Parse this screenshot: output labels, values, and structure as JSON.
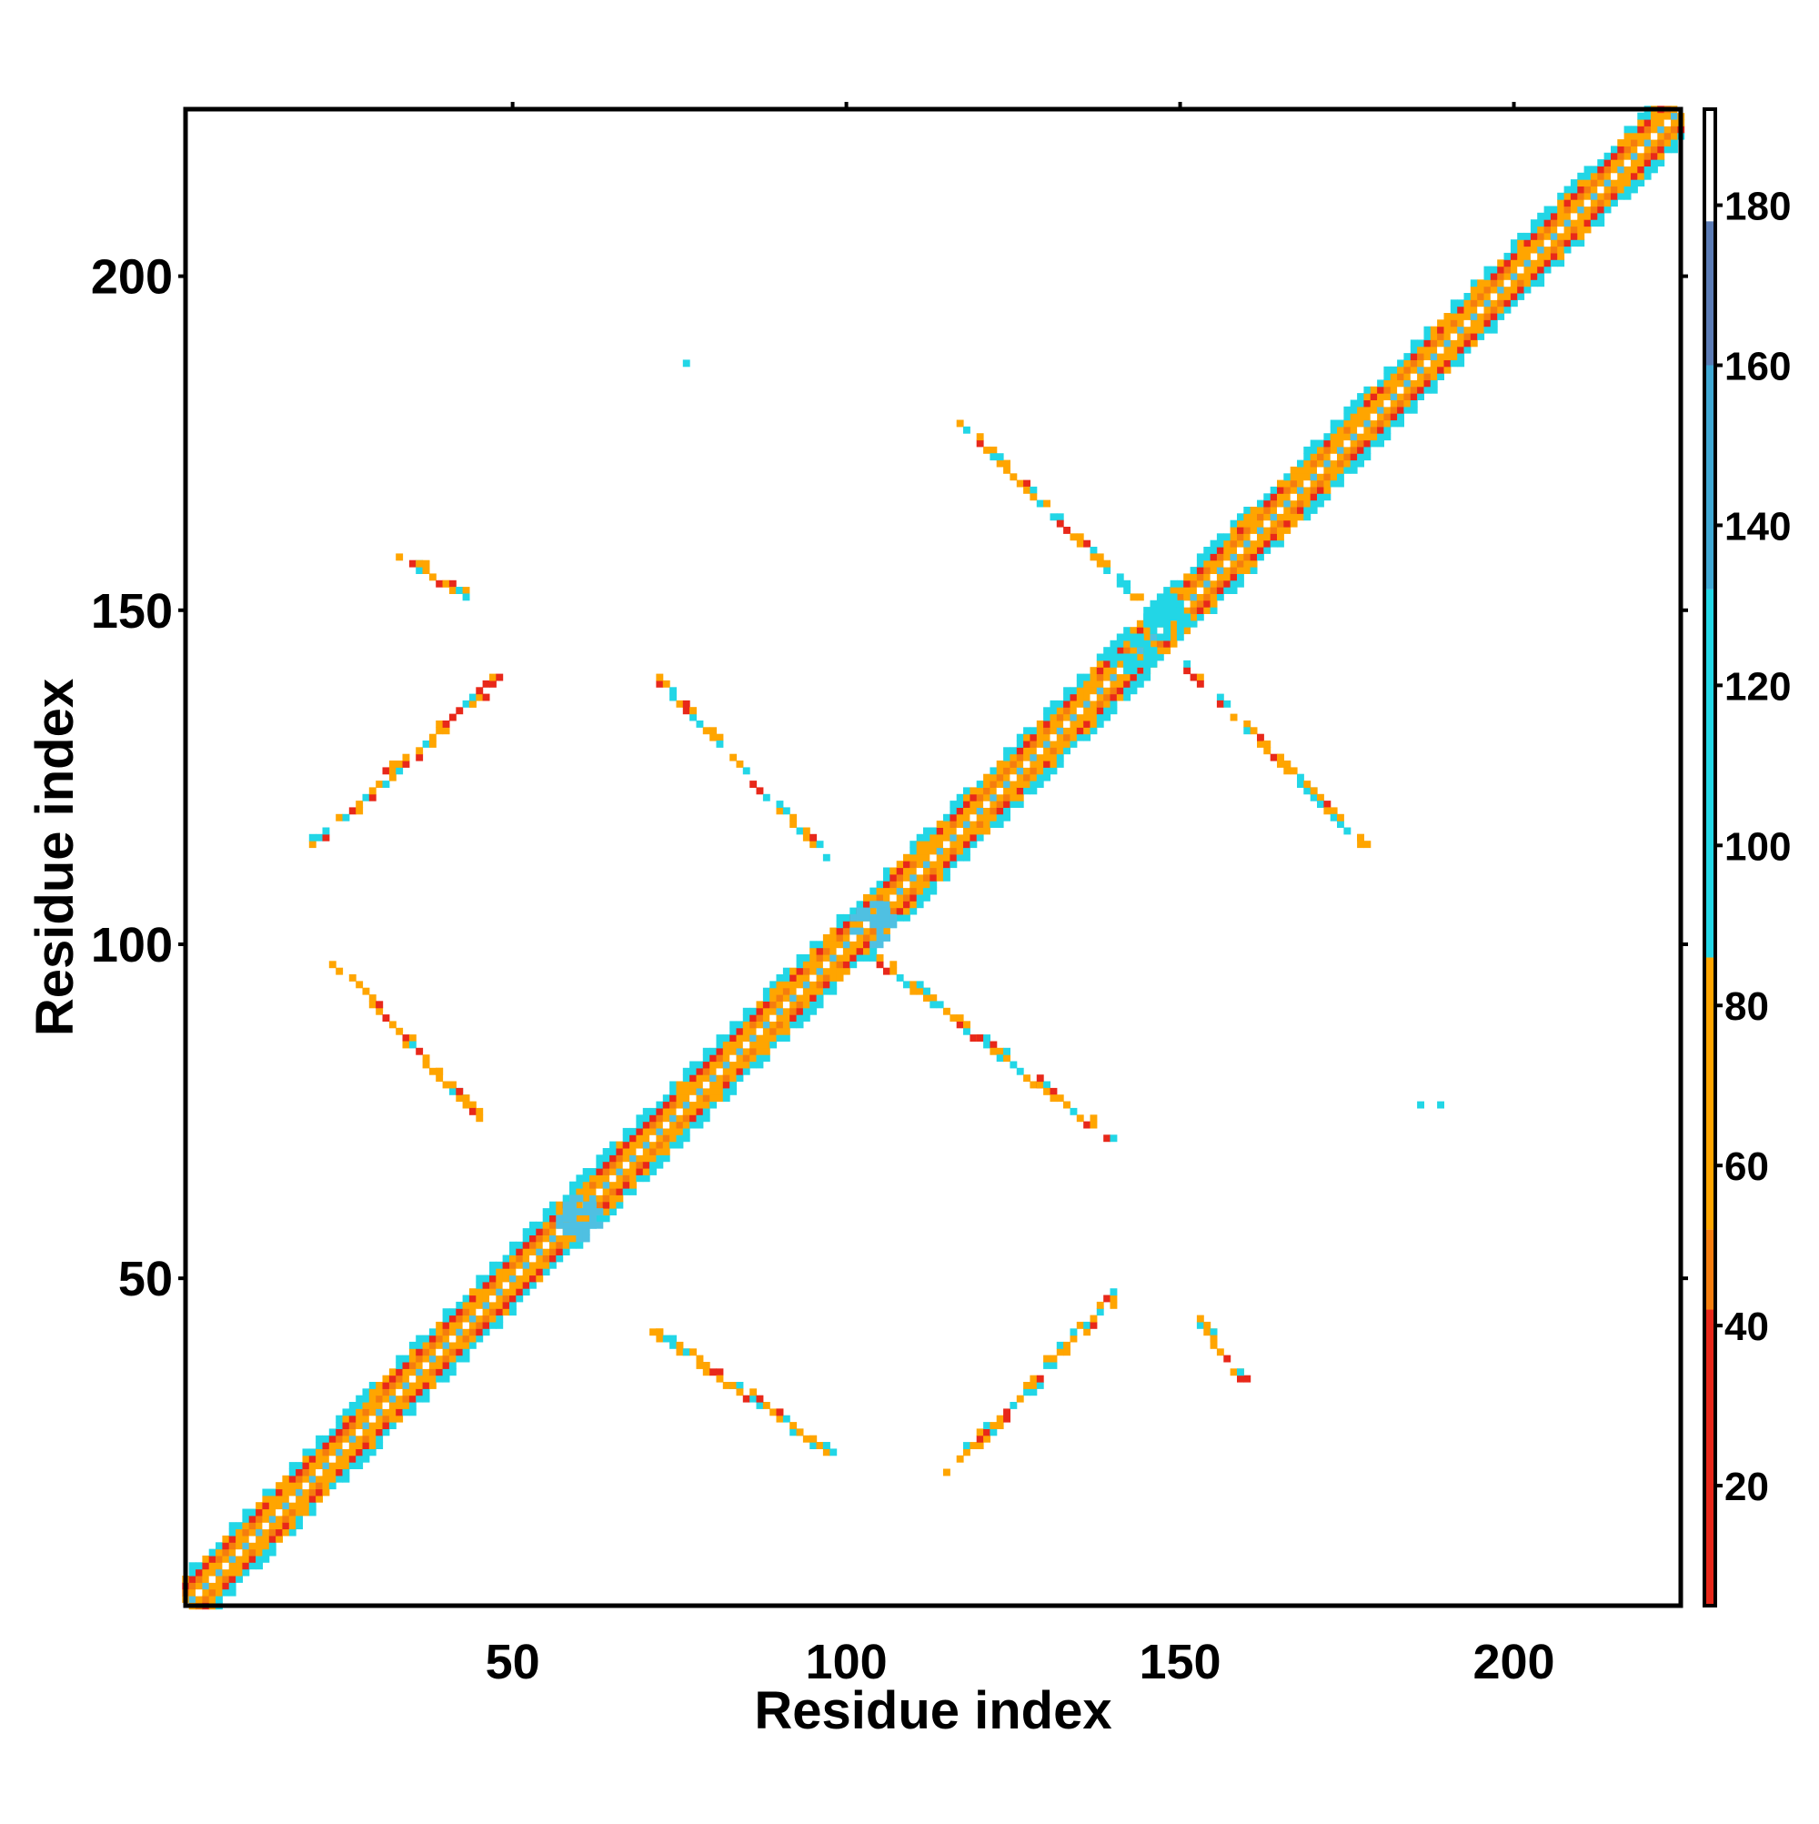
{
  "chart_data": {
    "type": "heatmap",
    "title": "",
    "xlabel": "Residue index",
    "ylabel": "Residue index",
    "xlim": [
      1,
      225
    ],
    "ylim": [
      1,
      225
    ],
    "x_ticks": [
      50,
      100,
      150,
      200
    ],
    "y_ticks": [
      50,
      100,
      150,
      200
    ],
    "colorbar": {
      "range": [
        5,
        192
      ],
      "ticks": [
        20,
        40,
        60,
        80,
        100,
        120,
        140,
        160,
        180
      ],
      "bands": [
        {
          "from": 5,
          "to": 42,
          "color": "#e8281a"
        },
        {
          "from": 42,
          "to": 52,
          "color": "#f57d0e"
        },
        {
          "from": 52,
          "to": 86,
          "color": "#ffa500"
        },
        {
          "from": 86,
          "to": 132,
          "color": "#22d6e6"
        },
        {
          "from": 132,
          "to": 160,
          "color": "#3fa8d4"
        },
        {
          "from": 160,
          "to": 178,
          "color": "#5b7bb5"
        },
        {
          "from": 178,
          "to": 192,
          "color": "#ffffff"
        }
      ]
    },
    "colors": {
      "red": "#e8281a",
      "orange": "#ffa500",
      "cyan": "#22d6e6",
      "lightblue": "#4fc0e2"
    },
    "segments": [
      {
        "x": [
          1,
          225
        ],
        "y": [
          1,
          225
        ],
        "band": "diagonal"
      },
      {
        "x": [
          20,
          48
        ],
        "y": [
          115,
          140
        ]
      },
      {
        "x": [
          23,
          45
        ],
        "y": [
          97,
          74
        ]
      },
      {
        "x": [
          33,
          43
        ],
        "y": [
          158,
          152
        ]
      },
      {
        "x": [
          72,
          98
        ],
        "y": [
          139,
          112
        ]
      },
      {
        "x": [
          104,
          139
        ],
        "y": [
          98,
          71
        ]
      },
      {
        "x": [
          71,
          97
        ],
        "y": [
          42,
          24
        ]
      },
      {
        "x": [
          115,
          140
        ],
        "y": [
          21,
          47
        ]
      },
      {
        "x": [
          117,
          143
        ],
        "y": [
          178,
          152
        ]
      },
      {
        "x": [
          151,
          177
        ],
        "y": [
          141,
          115
        ]
      },
      {
        "x": [
          153,
          159
        ],
        "y": [
          43,
          35
        ]
      }
    ],
    "spots": [
      {
        "x": 76,
        "y": 187
      },
      {
        "x": 186,
        "y": 76
      },
      {
        "x": 189,
        "y": 76
      }
    ],
    "knots": [
      {
        "x": 60,
        "y": 59,
        "color": "lightblue"
      },
      {
        "x": 104,
        "y": 103,
        "color": "lightblue"
      },
      {
        "x": 143,
        "y": 143,
        "color": "cyan"
      },
      {
        "x": 148,
        "y": 149,
        "color": "cyan"
      }
    ]
  }
}
